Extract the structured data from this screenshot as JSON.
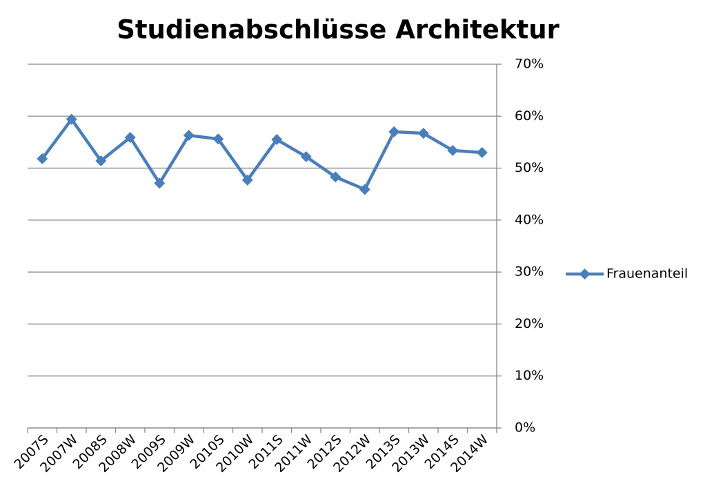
{
  "chart_data": {
    "type": "line",
    "title": "Studienabschlüsse Architektur",
    "categories": [
      "2007S",
      "2007W",
      "2008S",
      "2008W",
      "2009S",
      "2009W",
      "2010S",
      "2010W",
      "2011S",
      "2011W",
      "2012S",
      "2012W",
      "2013S",
      "2013W",
      "2014S",
      "2014W"
    ],
    "series": [
      {
        "name": "Frauenanteil",
        "color": "#4a7ebb",
        "values": [
          51.8,
          59.4,
          51.4,
          55.9,
          47.1,
          56.3,
          55.6,
          47.7,
          55.5,
          52.2,
          48.3,
          45.9,
          57.0,
          56.7,
          53.4,
          53.0
        ]
      }
    ],
    "ylim": [
      0,
      70
    ],
    "yticks": [
      {
        "value": 0,
        "label": "0%"
      },
      {
        "value": 10,
        "label": "10%"
      },
      {
        "value": 20,
        "label": "20%"
      },
      {
        "value": 30,
        "label": "30%"
      },
      {
        "value": 40,
        "label": "40%"
      },
      {
        "value": 50,
        "label": "50%"
      },
      {
        "value": 60,
        "label": "60%"
      },
      {
        "value": 70,
        "label": "70%"
      }
    ],
    "grid": true,
    "legend": "right"
  }
}
